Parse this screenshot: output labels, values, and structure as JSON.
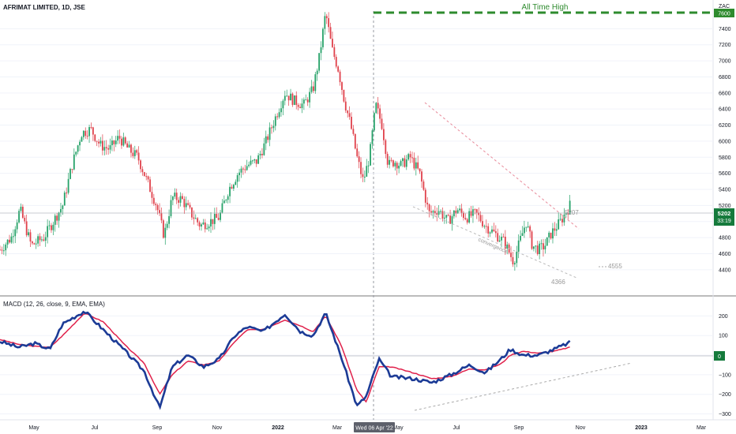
{
  "header": {
    "title": "AFRIMAT LIMITED, 1D, JSE",
    "currency": "ZAC"
  },
  "price_pane": {
    "y_ticks": [
      "7400",
      "7200",
      "7000",
      "6800",
      "6600",
      "6400",
      "6200",
      "6000",
      "5800",
      "5600",
      "5400",
      "5200",
      "5000",
      "4800",
      "4600",
      "4400"
    ],
    "ath_label": "All Time High",
    "ath_tag": "7600",
    "last_price_tag": "5202",
    "countdown_tag": "33:19",
    "annotations": {
      "high_label": "5207",
      "low_label": "4366",
      "low2_label": "4555",
      "convergence_label": "convergence"
    }
  },
  "macd_pane": {
    "title": "MACD (12, 26, close, 9, EMA, EMA)",
    "y_ticks": [
      "200",
      "100",
      "0",
      "−100",
      "−200",
      "−300"
    ],
    "zero_tag": "0"
  },
  "x_axis": {
    "labels": [
      "May",
      "Jul",
      "Sep",
      "Nov",
      "2022",
      "Mar",
      "May",
      "Jul",
      "Sep",
      "Nov",
      "2023",
      "Mar"
    ],
    "crosshair_label": "Wed 06 Apr '22"
  },
  "colors": {
    "up": "#26a269",
    "down": "#e0414b",
    "macd": "#1c3b96",
    "signal": "#e0214b",
    "ath": "#2e8b2e"
  },
  "chart_data": {
    "type": "candlestick",
    "symbol": "AFRIMAT LIMITED",
    "price_points": [
      {
        "t": 0,
        "p": 4650
      },
      {
        "t": 0.018,
        "p": 4800
      },
      {
        "t": 0.032,
        "p": 5150
      },
      {
        "t": 0.05,
        "p": 4700
      },
      {
        "t": 0.07,
        "p": 4800
      },
      {
        "t": 0.085,
        "p": 5000
      },
      {
        "t": 0.1,
        "p": 5200
      },
      {
        "t": 0.115,
        "p": 5700
      },
      {
        "t": 0.13,
        "p": 6100
      },
      {
        "t": 0.145,
        "p": 6150
      },
      {
        "t": 0.16,
        "p": 5950
      },
      {
        "t": 0.175,
        "p": 5900
      },
      {
        "t": 0.19,
        "p": 6050
      },
      {
        "t": 0.205,
        "p": 5900
      },
      {
        "t": 0.22,
        "p": 5800
      },
      {
        "t": 0.235,
        "p": 5500
      },
      {
        "t": 0.25,
        "p": 5200
      },
      {
        "t": 0.262,
        "p": 4820
      },
      {
        "t": 0.275,
        "p": 5300
      },
      {
        "t": 0.29,
        "p": 5280
      },
      {
        "t": 0.305,
        "p": 5100
      },
      {
        "t": 0.32,
        "p": 4950
      },
      {
        "t": 0.335,
        "p": 5000
      },
      {
        "t": 0.35,
        "p": 5050
      },
      {
        "t": 0.365,
        "p": 5400
      },
      {
        "t": 0.38,
        "p": 5600
      },
      {
        "t": 0.395,
        "p": 5700
      },
      {
        "t": 0.41,
        "p": 5750
      },
      {
        "t": 0.425,
        "p": 6000
      },
      {
        "t": 0.44,
        "p": 6300
      },
      {
        "t": 0.455,
        "p": 6600
      },
      {
        "t": 0.47,
        "p": 6500
      },
      {
        "t": 0.485,
        "p": 6450
      },
      {
        "t": 0.5,
        "p": 6650
      },
      {
        "t": 0.51,
        "p": 7050
      },
      {
        "t": 0.52,
        "p": 7600
      },
      {
        "t": 0.53,
        "p": 7150
      },
      {
        "t": 0.54,
        "p": 6900
      },
      {
        "t": 0.55,
        "p": 6500
      },
      {
        "t": 0.56,
        "p": 6200
      },
      {
        "t": 0.57,
        "p": 5800
      },
      {
        "t": 0.58,
        "p": 5500
      },
      {
        "t": 0.59,
        "p": 5800
      },
      {
        "t": 0.6,
        "p": 6450
      },
      {
        "t": 0.61,
        "p": 6200
      },
      {
        "t": 0.62,
        "p": 5700
      },
      {
        "t": 0.63,
        "p": 5750
      },
      {
        "t": 0.64,
        "p": 5700
      },
      {
        "t": 0.655,
        "p": 5800
      },
      {
        "t": 0.67,
        "p": 5600
      },
      {
        "t": 0.685,
        "p": 5100
      },
      {
        "t": 0.7,
        "p": 5150
      },
      {
        "t": 0.715,
        "p": 5000
      },
      {
        "t": 0.73,
        "p": 5150
      },
      {
        "t": 0.745,
        "p": 5050
      },
      {
        "t": 0.76,
        "p": 5100
      },
      {
        "t": 0.775,
        "p": 4950
      },
      {
        "t": 0.79,
        "p": 4850
      },
      {
        "t": 0.805,
        "p": 4750
      },
      {
        "t": 0.82,
        "p": 4500
      },
      {
        "t": 0.83,
        "p": 4750
      },
      {
        "t": 0.84,
        "p": 5000
      },
      {
        "t": 0.85,
        "p": 4700
      },
      {
        "t": 0.86,
        "p": 4650
      },
      {
        "t": 0.87,
        "p": 4700
      },
      {
        "t": 0.88,
        "p": 4850
      },
      {
        "t": 0.895,
        "p": 5000
      },
      {
        "t": 0.91,
        "p": 5202
      }
    ],
    "macd_points": [
      {
        "t": 0,
        "macd": 70,
        "signal": 80
      },
      {
        "t": 0.03,
        "macd": 40,
        "signal": 55
      },
      {
        "t": 0.055,
        "macd": 60,
        "signal": 45
      },
      {
        "t": 0.08,
        "macd": 30,
        "signal": 40
      },
      {
        "t": 0.1,
        "macd": 160,
        "signal": 100
      },
      {
        "t": 0.135,
        "macd": 225,
        "signal": 215
      },
      {
        "t": 0.165,
        "macd": 130,
        "signal": 170
      },
      {
        "t": 0.2,
        "macd": 20,
        "signal": 50
      },
      {
        "t": 0.23,
        "macd": -80,
        "signal": -40
      },
      {
        "t": 0.255,
        "macd": -270,
        "signal": -200
      },
      {
        "t": 0.275,
        "macd": -60,
        "signal": -100
      },
      {
        "t": 0.3,
        "macd": 0,
        "signal": -30
      },
      {
        "t": 0.325,
        "macd": -60,
        "signal": -50
      },
      {
        "t": 0.35,
        "macd": -20,
        "signal": -30
      },
      {
        "t": 0.375,
        "macd": 100,
        "signal": 70
      },
      {
        "t": 0.395,
        "macd": 145,
        "signal": 130
      },
      {
        "t": 0.42,
        "macd": 120,
        "signal": 130
      },
      {
        "t": 0.455,
        "macd": 210,
        "signal": 180
      },
      {
        "t": 0.48,
        "macd": 120,
        "signal": 150
      },
      {
        "t": 0.5,
        "macd": 100,
        "signal": 120
      },
      {
        "t": 0.52,
        "macd": 215,
        "signal": 200
      },
      {
        "t": 0.545,
        "macd": -10,
        "signal": 50
      },
      {
        "t": 0.57,
        "macd": -260,
        "signal": -180
      },
      {
        "t": 0.585,
        "macd": -210,
        "signal": -240
      },
      {
        "t": 0.605,
        "macd": -20,
        "signal": -60
      },
      {
        "t": 0.625,
        "macd": -110,
        "signal": -60
      },
      {
        "t": 0.66,
        "macd": -120,
        "signal": -90
      },
      {
        "t": 0.69,
        "macd": -140,
        "signal": -120
      },
      {
        "t": 0.72,
        "macd": -100,
        "signal": -110
      },
      {
        "t": 0.75,
        "macd": -50,
        "signal": -70
      },
      {
        "t": 0.775,
        "macd": -90,
        "signal": -75
      },
      {
        "t": 0.8,
        "macd": -20,
        "signal": -45
      },
      {
        "t": 0.815,
        "macd": 30,
        "signal": 0
      },
      {
        "t": 0.835,
        "macd": 0,
        "signal": 20
      },
      {
        "t": 0.86,
        "macd": 0,
        "signal": 10
      },
      {
        "t": 0.885,
        "macd": 30,
        "signal": 20
      },
      {
        "t": 0.91,
        "macd": 65,
        "signal": 40
      }
    ],
    "price_ylim": [
      4300,
      7600
    ],
    "macd_ylim": [
      -330,
      250
    ],
    "all_time_high": 7600,
    "last_price": 5202,
    "crosshair_date": "Wed 06 Apr '22"
  }
}
